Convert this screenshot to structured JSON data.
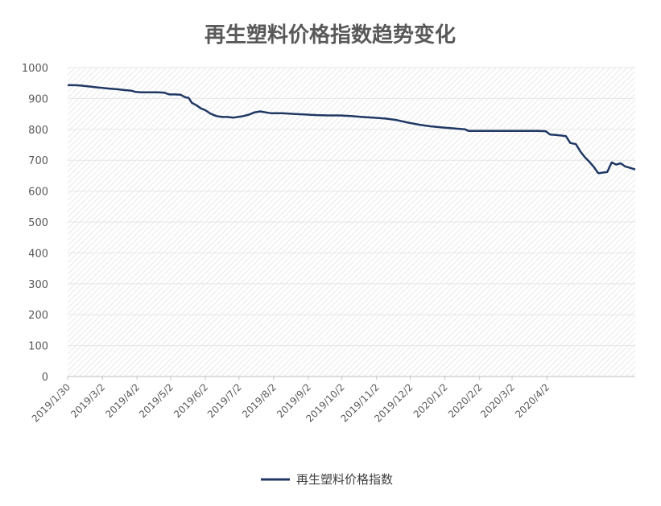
{
  "chart_data": {
    "type": "line",
    "title": "再生塑料价格指数趋势变化",
    "xlabel": "",
    "ylabel": "",
    "ylim": [
      0,
      1000
    ],
    "yticks": [
      "0",
      "100",
      "200",
      "300",
      "400",
      "500",
      "600",
      "700",
      "800",
      "900",
      "1000"
    ],
    "xticks": [
      "2019/1/30",
      "2019/3/2",
      "2019/4/2",
      "2019/5/2",
      "2019/6/2",
      "2019/7/2",
      "2019/8/2",
      "2019/9/2",
      "2019/10/2",
      "2019/11/2",
      "2019/12/2",
      "2020/1/2",
      "2020/2/2",
      "2020/3/2",
      "2020/4/2"
    ],
    "grid": true,
    "legend": "bottom",
    "series": [
      {
        "name": "再生塑料价格指数",
        "color": "#1f3864",
        "points": [
          [
            "2019/1/30",
            943
          ],
          [
            "2019/2/5",
            943
          ],
          [
            "2019/2/10",
            942
          ],
          [
            "2019/2/15",
            940
          ],
          [
            "2019/2/20",
            938
          ],
          [
            "2019/2/25",
            936
          ],
          [
            "2019/3/2",
            934
          ],
          [
            "2019/3/8",
            932
          ],
          [
            "2019/3/15",
            930
          ],
          [
            "2019/3/22",
            927
          ],
          [
            "2019/3/28",
            925
          ],
          [
            "2019/4/1",
            921
          ],
          [
            "2019/4/6",
            920
          ],
          [
            "2019/4/13",
            920
          ],
          [
            "2019/4/20",
            920
          ],
          [
            "2019/4/26",
            919
          ],
          [
            "2019/5/1",
            913
          ],
          [
            "2019/5/6",
            913
          ],
          [
            "2019/5/11",
            912
          ],
          [
            "2019/5/15",
            904
          ],
          [
            "2019/5/18",
            902
          ],
          [
            "2019/5/21",
            886
          ],
          [
            "2019/5/25",
            878
          ],
          [
            "2019/5/29",
            868
          ],
          [
            "2019/6/2",
            862
          ],
          [
            "2019/6/7",
            850
          ],
          [
            "2019/6/12",
            843
          ],
          [
            "2019/6/17",
            840
          ],
          [
            "2019/6/22",
            840
          ],
          [
            "2019/6/27",
            838
          ],
          [
            "2019/7/1",
            840
          ],
          [
            "2019/7/6",
            843
          ],
          [
            "2019/7/11",
            848
          ],
          [
            "2019/7/16",
            855
          ],
          [
            "2019/7/21",
            858
          ],
          [
            "2019/7/26",
            855
          ],
          [
            "2019/7/31",
            852
          ],
          [
            "2019/8/10",
            852
          ],
          [
            "2019/8/20",
            850
          ],
          [
            "2019/8/31",
            848
          ],
          [
            "2019/9/10",
            846
          ],
          [
            "2019/9/20",
            845
          ],
          [
            "2019/9/30",
            845
          ],
          [
            "2019/10/10",
            843
          ],
          [
            "2019/10/20",
            840
          ],
          [
            "2019/10/30",
            838
          ],
          [
            "2019/11/10",
            835
          ],
          [
            "2019/11/20",
            830
          ],
          [
            "2019/11/30",
            822
          ],
          [
            "2019/12/10",
            815
          ],
          [
            "2019/12/20",
            810
          ],
          [
            "2019/12/31",
            806
          ],
          [
            "2020/1/10",
            803
          ],
          [
            "2020/1/20",
            800
          ],
          [
            "2020/1/23",
            795
          ],
          [
            "2020/1/27",
            795
          ],
          [
            "2020/2/5",
            795
          ],
          [
            "2020/2/15",
            795
          ],
          [
            "2020/2/25",
            795
          ],
          [
            "2020/3/5",
            795
          ],
          [
            "2020/3/15",
            795
          ],
          [
            "2020/3/25",
            795
          ],
          [
            "2020/4/1",
            794
          ],
          [
            "2020/4/5",
            783
          ],
          [
            "2020/4/10",
            782
          ],
          [
            "2020/4/15",
            780
          ],
          [
            "2020/4/19",
            778
          ],
          [
            "2020/4/23",
            756
          ],
          [
            "2020/4/28",
            752
          ],
          [
            "2020/5/2",
            728
          ],
          [
            "2020/5/6",
            710
          ],
          [
            "2020/5/10",
            695
          ],
          [
            "2020/5/14",
            678
          ],
          [
            "2020/5/18",
            658
          ],
          [
            "2020/5/22",
            660
          ],
          [
            "2020/5/26",
            662
          ],
          [
            "2020/5/30",
            693
          ],
          [
            "2020/6/3",
            686
          ],
          [
            "2020/6/7",
            690
          ],
          [
            "2020/6/11",
            680
          ],
          [
            "2020/6/15",
            676
          ],
          [
            "2020/6/20",
            670
          ]
        ]
      }
    ]
  }
}
